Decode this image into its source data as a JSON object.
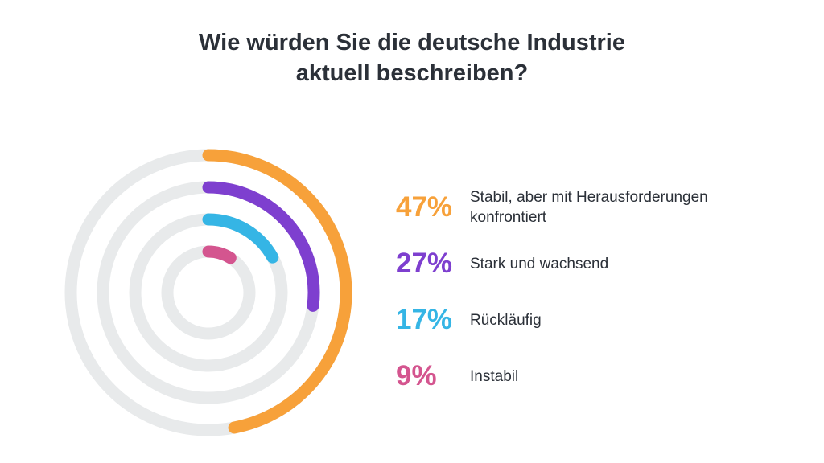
{
  "chart_data": {
    "type": "radial-bar",
    "title": "Wie würden Sie die deutsche Industrie aktuell beschreiben?",
    "categories": [
      "Stabil, aber mit Herausforderungen konfrontiert",
      "Stark und wachsend",
      "Rückläufig",
      "Instabil"
    ],
    "values": [
      47,
      27,
      17,
      9
    ],
    "value_labels": [
      "47%",
      "27%",
      "17%",
      "9%"
    ],
    "colors": [
      "#f7a13a",
      "#7e3fcf",
      "#35b5e5",
      "#d4558f"
    ],
    "ylim": [
      0,
      100
    ]
  }
}
